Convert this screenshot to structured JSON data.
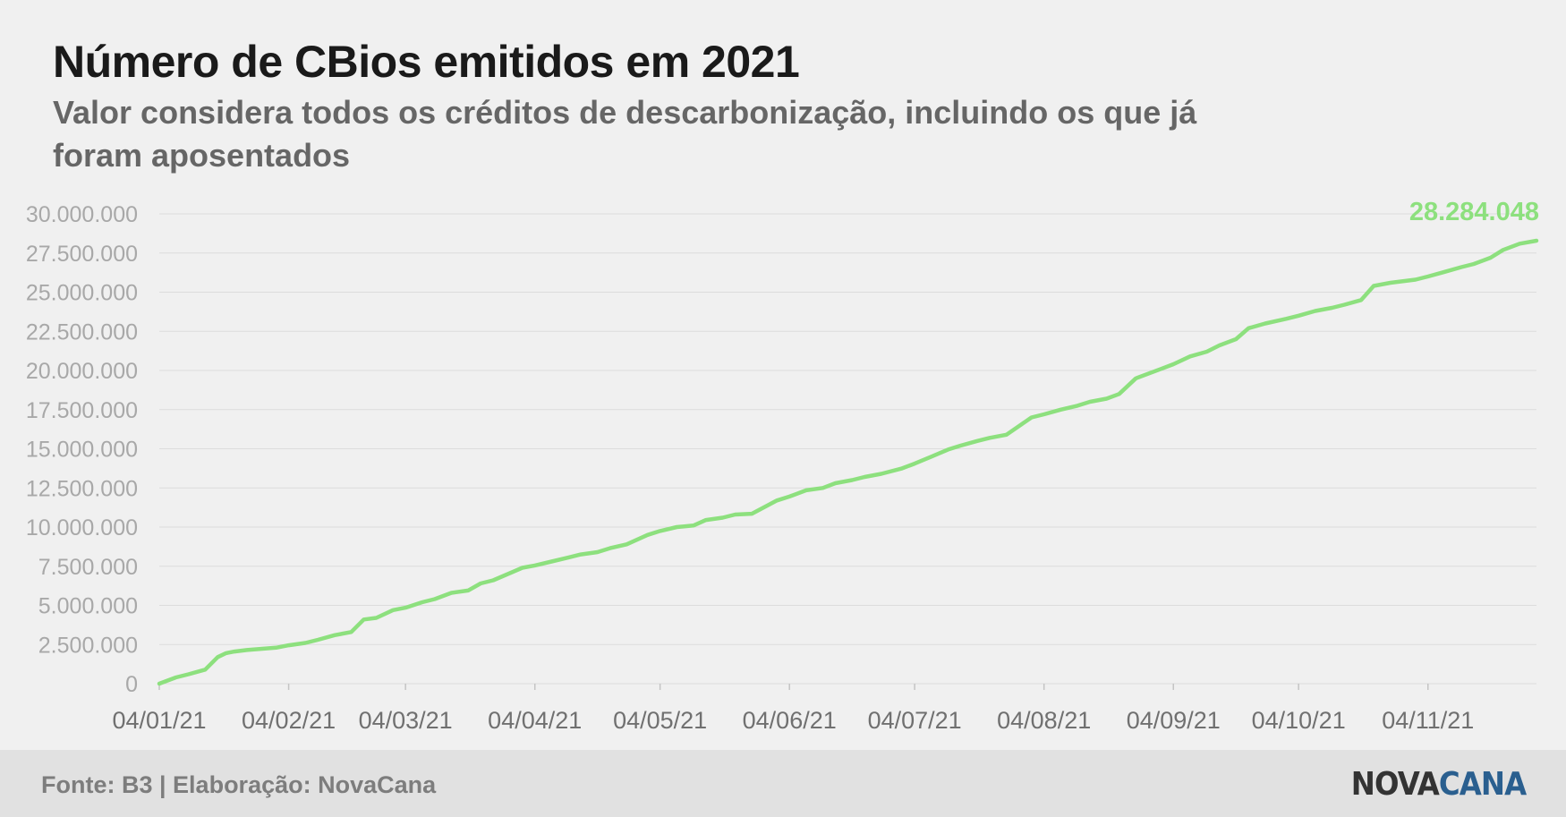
{
  "header": {
    "title": "Número de CBios emitidos em 2021",
    "subtitle": "Valor considera todos os créditos de descarbonização, incluindo os que já foram aposentados"
  },
  "footer": {
    "source": "Fonte: B3 | Elaboração: NovaCana",
    "logo_part1": "NOVA",
    "logo_part2": "CANA"
  },
  "colors": {
    "line": "#8de07e",
    "grid": "#dcdcdc",
    "axis_text": "#a8a8a8",
    "x_text": "#707070"
  },
  "chart_data": {
    "type": "line",
    "title": "",
    "xlabel": "",
    "ylabel": "",
    "ylim": [
      0,
      30000000
    ],
    "grid": "horizontal",
    "y_ticks": [
      0,
      2500000,
      5000000,
      7500000,
      10000000,
      12500000,
      15000000,
      17500000,
      20000000,
      22500000,
      25000000,
      27500000,
      30000000
    ],
    "y_tick_labels": [
      "0",
      "2.500.000",
      "5.000.000",
      "7.500.000",
      "10.000.000",
      "12.500.000",
      "15.000.000",
      "17.500.000",
      "20.000.000",
      "22.500.000",
      "25.000.000",
      "27.500.000",
      "30.000.000"
    ],
    "x_ticks": [
      "2021-01-04",
      "2021-02-04",
      "2021-03-04",
      "2021-04-04",
      "2021-05-04",
      "2021-06-04",
      "2021-07-04",
      "2021-08-04",
      "2021-09-04",
      "2021-10-04",
      "2021-11-04"
    ],
    "x_tick_labels": [
      "04/01/21",
      "04/02/21",
      "04/03/21",
      "04/04/21",
      "04/05/21",
      "04/06/21",
      "04/07/21",
      "04/08/21",
      "04/09/21",
      "04/10/21",
      "04/11/21"
    ],
    "annotation": "28.284.048",
    "series": [
      {
        "x": [
          "2021-01-04",
          "2021-01-08",
          "2021-01-11",
          "2021-01-15",
          "2021-01-18",
          "2021-01-20",
          "2021-01-22",
          "2021-01-25",
          "2021-02-01",
          "2021-02-04",
          "2021-02-08",
          "2021-02-11",
          "2021-02-15",
          "2021-02-19",
          "2021-02-22",
          "2021-02-25",
          "2021-03-01",
          "2021-03-04",
          "2021-03-08",
          "2021-03-11",
          "2021-03-15",
          "2021-03-19",
          "2021-03-22",
          "2021-03-25",
          "2021-04-01",
          "2021-04-04",
          "2021-04-08",
          "2021-04-12",
          "2021-04-15",
          "2021-04-19",
          "2021-04-22",
          "2021-04-26",
          "2021-05-01",
          "2021-05-04",
          "2021-05-08",
          "2021-05-12",
          "2021-05-15",
          "2021-05-19",
          "2021-05-22",
          "2021-05-26",
          "2021-06-01",
          "2021-06-04",
          "2021-06-08",
          "2021-06-12",
          "2021-06-15",
          "2021-06-19",
          "2021-06-22",
          "2021-06-26",
          "2021-07-01",
          "2021-07-04",
          "2021-07-08",
          "2021-07-12",
          "2021-07-15",
          "2021-07-19",
          "2021-07-22",
          "2021-07-26",
          "2021-08-01",
          "2021-08-04",
          "2021-08-08",
          "2021-08-12",
          "2021-08-15",
          "2021-08-19",
          "2021-08-22",
          "2021-08-26",
          "2021-09-01",
          "2021-09-04",
          "2021-09-08",
          "2021-09-12",
          "2021-09-15",
          "2021-09-19",
          "2021-09-22",
          "2021-09-26",
          "2021-10-01",
          "2021-10-04",
          "2021-10-08",
          "2021-10-12",
          "2021-10-15",
          "2021-10-19",
          "2021-10-22",
          "2021-10-26",
          "2021-11-01",
          "2021-11-04",
          "2021-11-08",
          "2021-11-12",
          "2021-11-15",
          "2021-11-19",
          "2021-11-22",
          "2021-11-26",
          "2021-11-30"
        ],
        "values": [
          0,
          400000,
          600000,
          900000,
          1700000,
          1950000,
          2050000,
          2150000,
          2300000,
          2450000,
          2600000,
          2800000,
          3100000,
          3300000,
          4100000,
          4200000,
          4700000,
          4850000,
          5200000,
          5400000,
          5800000,
          5950000,
          6400000,
          6600000,
          7400000,
          7550000,
          7800000,
          8050000,
          8250000,
          8400000,
          8650000,
          8900000,
          9500000,
          9750000,
          10000000,
          10100000,
          10450000,
          10600000,
          10800000,
          10850000,
          11700000,
          11950000,
          12350000,
          12500000,
          12800000,
          13000000,
          13200000,
          13400000,
          13750000,
          14050000,
          14500000,
          14950000,
          15200000,
          15500000,
          15700000,
          15900000,
          17000000,
          17200000,
          17500000,
          17750000,
          18000000,
          18200000,
          18500000,
          19500000,
          20100000,
          20400000,
          20900000,
          21200000,
          21600000,
          22000000,
          22700000,
          23000000,
          23300000,
          23500000,
          23800000,
          24000000,
          24200000,
          24500000,
          25400000,
          25600000,
          25800000,
          26000000,
          26300000,
          26600000,
          26800000,
          27200000,
          27700000,
          28100000,
          28284048
        ]
      }
    ]
  }
}
